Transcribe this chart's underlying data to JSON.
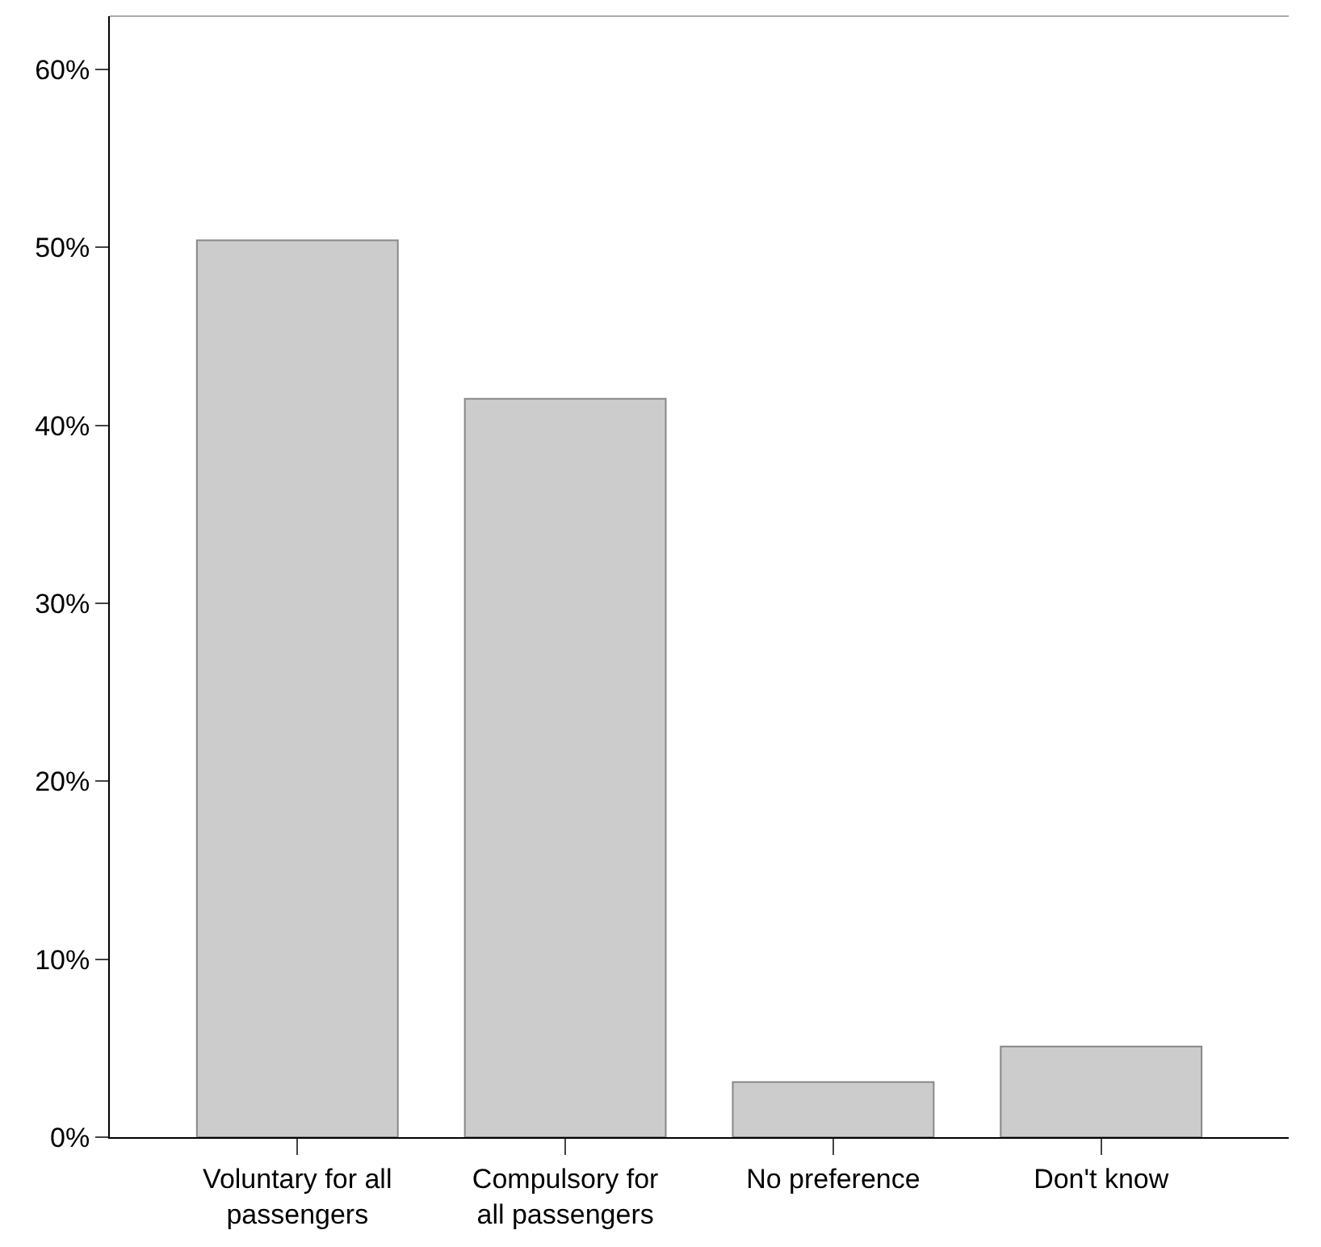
{
  "chart_data": {
    "type": "bar",
    "categories": [
      "Voluntary for all passengers",
      "Compulsory for all passengers",
      "No preference",
      "Don't know"
    ],
    "values": [
      50.4,
      41.5,
      3.1,
      5.1
    ],
    "color": "#cccccc",
    "ylim": [
      0,
      63
    ],
    "yticks": [
      {
        "value": 0,
        "label": "0%"
      },
      {
        "value": 10,
        "label": "10%"
      },
      {
        "value": 20,
        "label": "20%"
      },
      {
        "value": 30,
        "label": "30%"
      },
      {
        "value": 40,
        "label": "40%"
      },
      {
        "value": 50,
        "label": "50%"
      },
      {
        "value": 60,
        "label": "60%"
      }
    ],
    "tick_labels": "xy"
  }
}
